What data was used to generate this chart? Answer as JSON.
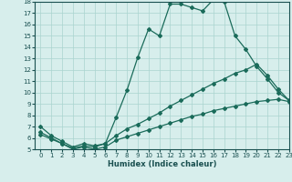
{
  "line1_x": [
    0,
    1,
    2,
    3,
    4,
    5,
    6,
    7,
    8,
    9,
    10,
    11,
    12,
    13,
    14,
    15,
    16,
    17,
    18,
    19,
    20,
    21,
    22,
    23
  ],
  "line1_y": [
    7.0,
    6.2,
    5.7,
    5.2,
    5.5,
    5.3,
    5.5,
    7.8,
    10.2,
    13.1,
    15.6,
    15.0,
    17.8,
    17.8,
    17.5,
    17.2,
    18.2,
    18.0,
    15.0,
    13.8,
    12.3,
    11.2,
    10.0,
    9.3
  ],
  "line2_x": [
    0,
    1,
    2,
    3,
    4,
    5,
    6,
    7,
    8,
    9,
    10,
    11,
    12,
    13,
    14,
    15,
    16,
    17,
    18,
    19,
    20,
    21,
    22,
    23
  ],
  "line2_y": [
    6.5,
    6.0,
    5.5,
    5.1,
    5.3,
    5.2,
    5.5,
    6.2,
    6.8,
    7.2,
    7.7,
    8.2,
    8.8,
    9.3,
    9.8,
    10.3,
    10.8,
    11.2,
    11.7,
    12.0,
    12.5,
    11.5,
    10.3,
    9.3
  ],
  "line3_x": [
    0,
    1,
    2,
    3,
    4,
    5,
    6,
    7,
    8,
    9,
    10,
    11,
    12,
    13,
    14,
    15,
    16,
    17,
    18,
    19,
    20,
    21,
    22,
    23
  ],
  "line3_y": [
    6.3,
    5.9,
    5.5,
    5.0,
    5.2,
    5.0,
    5.2,
    5.8,
    6.1,
    6.4,
    6.7,
    7.0,
    7.3,
    7.6,
    7.9,
    8.1,
    8.4,
    8.6,
    8.8,
    9.0,
    9.2,
    9.3,
    9.4,
    9.2
  ],
  "color": "#1a6b5a",
  "bg_color": "#d7eeec",
  "xlabel": "Humidex (Indice chaleur)",
  "ylim": [
    5,
    18
  ],
  "xlim": [
    -0.5,
    23
  ],
  "yticks": [
    5,
    6,
    7,
    8,
    9,
    10,
    11,
    12,
    13,
    14,
    15,
    16,
    17,
    18
  ],
  "xticks": [
    0,
    1,
    2,
    3,
    4,
    5,
    6,
    7,
    8,
    9,
    10,
    11,
    12,
    13,
    14,
    15,
    16,
    17,
    18,
    19,
    20,
    21,
    22,
    23
  ],
  "grid_color": "#aad4cf",
  "marker": "D",
  "markersize": 2.0,
  "linewidth": 0.9,
  "font_color": "#1a5050",
  "tick_fontsize": 5.0,
  "xlabel_fontsize": 6.0
}
